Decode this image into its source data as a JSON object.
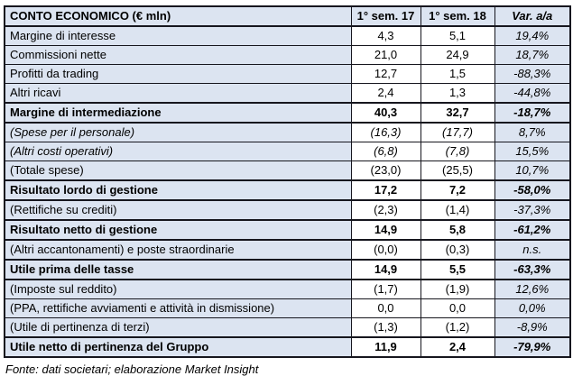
{
  "colors": {
    "row_fill": "#dce4f1",
    "value_fill": "#ffffff",
    "border": "#16161e",
    "text": "#000000"
  },
  "table": {
    "header": {
      "title": "CONTO ECONOMICO (€ mln)",
      "col_sem17": "1° sem. 17",
      "col_sem18": "1° sem. 18",
      "col_var": "Var. a/a"
    },
    "rows": [
      {
        "label": "Margine di interesse",
        "sem17": "4,3",
        "sem18": "5,1",
        "var": "19,4%",
        "style": "normal"
      },
      {
        "label": "Commissioni nette",
        "sem17": "21,0",
        "sem18": "24,9",
        "var": "18,7%",
        "style": "normal"
      },
      {
        "label": "Profitti da trading",
        "sem17": "12,7",
        "sem18": "1,5",
        "var": "-88,3%",
        "style": "normal"
      },
      {
        "label": "Altri ricavi",
        "sem17": "2,4",
        "sem18": "1,3",
        "var": "-44,8%",
        "style": "normal"
      },
      {
        "label": "Margine di intermediazione",
        "sem17": "40,3",
        "sem18": "32,7",
        "var": "-18,7%",
        "style": "bold"
      },
      {
        "label": "(Spese per il personale)",
        "sem17": "(16,3)",
        "sem18": "(17,7)",
        "var": "8,7%",
        "style": "italic"
      },
      {
        "label": "(Altri costi operativi)",
        "sem17": "(6,8)",
        "sem18": "(7,8)",
        "var": "15,5%",
        "style": "italic"
      },
      {
        "label": "(Totale spese)",
        "sem17": "(23,0)",
        "sem18": "(25,5)",
        "var": "10,7%",
        "style": "normal"
      },
      {
        "label": "Risultato lordo di gestione",
        "sem17": "17,2",
        "sem18": "7,2",
        "var": "-58,0%",
        "style": "bold"
      },
      {
        "label": "(Rettifiche su crediti)",
        "sem17": "(2,3)",
        "sem18": "(1,4)",
        "var": "-37,3%",
        "style": "normal"
      },
      {
        "label": "Risultato netto di gestione",
        "sem17": "14,9",
        "sem18": "5,8",
        "var": "-61,2%",
        "style": "bold"
      },
      {
        "label": "(Altri accantonamenti) e poste straordinarie",
        "sem17": "(0,0)",
        "sem18": "(0,3)",
        "var": "n.s.",
        "style": "normal"
      },
      {
        "label": "Utile prima delle tasse",
        "sem17": "14,9",
        "sem18": "5,5",
        "var": "-63,3%",
        "style": "bold"
      },
      {
        "label": "(Imposte sul reddito)",
        "sem17": "(1,7)",
        "sem18": "(1,9)",
        "var": "12,6%",
        "style": "normal"
      },
      {
        "label": "(PPA, rettifiche avviamenti e attività in dismissione)",
        "sem17": "0,0",
        "sem18": "0,0",
        "var": "0,0%",
        "style": "normal"
      },
      {
        "label": "(Utile di pertinenza di terzi)",
        "sem17": "(1,3)",
        "sem18": "(1,2)",
        "var": "-8,9%",
        "style": "normal"
      },
      {
        "label": "Utile netto di pertinenza del Gruppo",
        "sem17": "11,9",
        "sem18": "2,4",
        "var": "-79,9%",
        "style": "bold"
      }
    ]
  },
  "footer": {
    "source": "Fonte: dati societari; elaborazione Market Insight"
  }
}
